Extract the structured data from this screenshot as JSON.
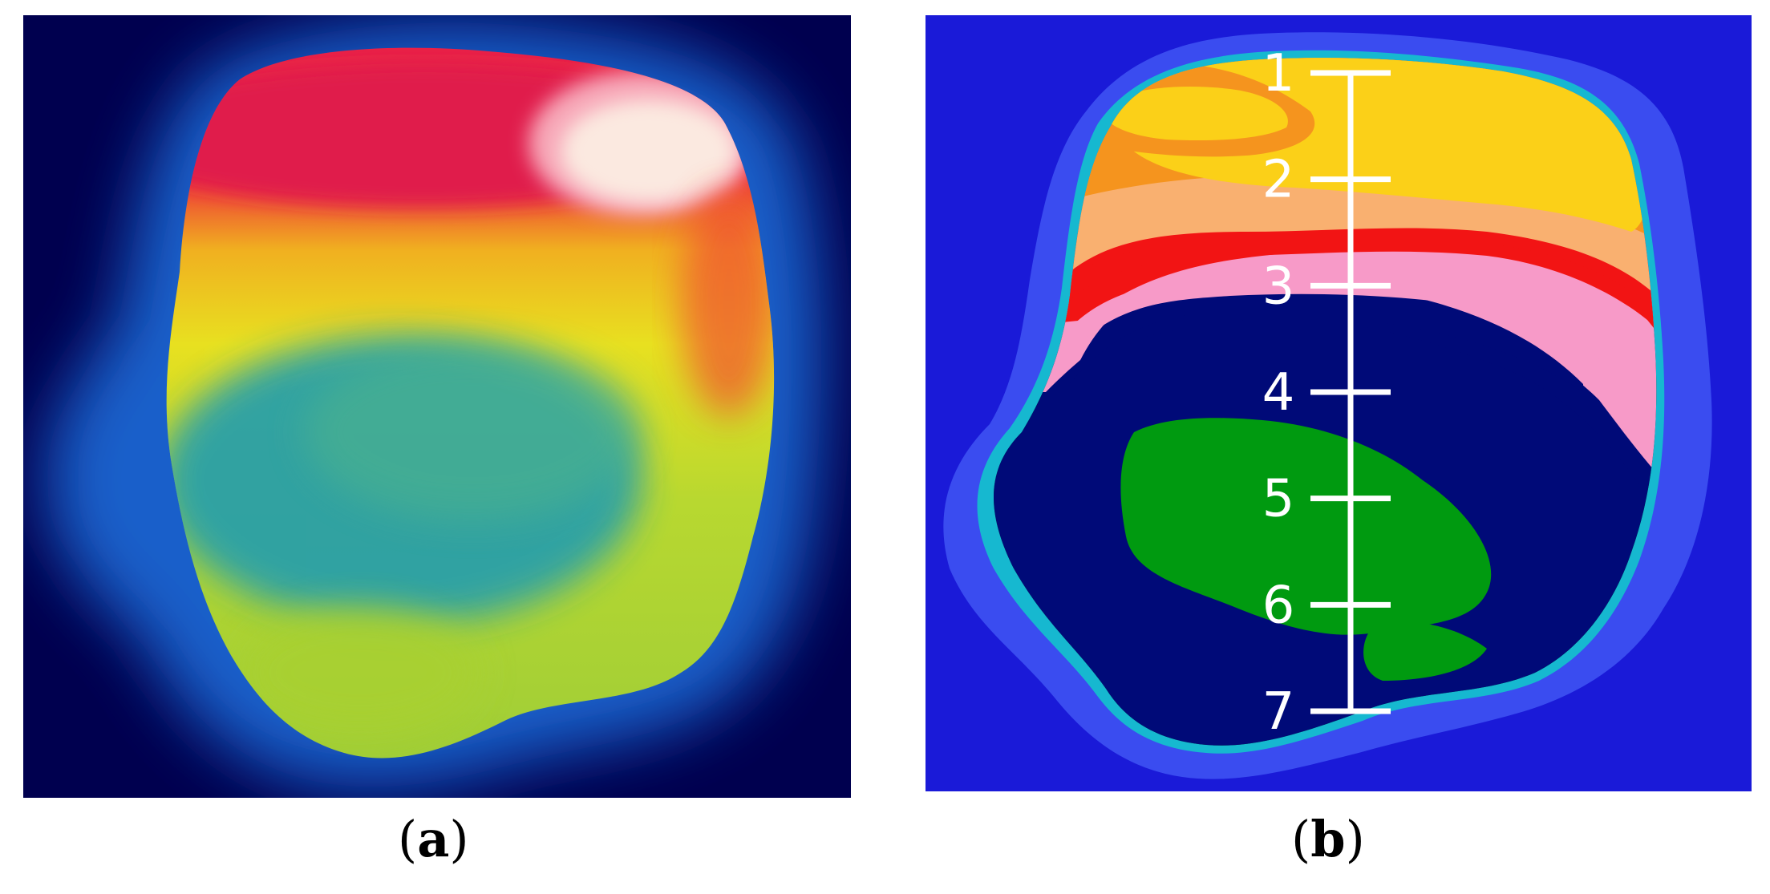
{
  "panels": [
    {
      "id": "a",
      "caption_open": "(",
      "caption_letter": "a",
      "caption_close": ")"
    },
    {
      "id": "b",
      "caption_open": "(",
      "caption_letter": "b",
      "caption_close": ")"
    }
  ],
  "scale_ticks": [
    "1",
    "2",
    "3",
    "4",
    "5",
    "6",
    "7"
  ],
  "colors": {
    "a_background": "#00004f",
    "a_halo": "#1a6ad8",
    "a_red": "#e8204a",
    "a_white": "#fbe9e0",
    "a_yellow": "#e8e020",
    "a_green": "#a8d830",
    "a_teal": "#2aa0a8",
    "b_background": "#1a1ad8",
    "b_blue_ring": "#3a4cf0",
    "b_cyan": "#16b8d0",
    "b_green": "#009a10",
    "b_navy": "#000a78",
    "b_pink": "#f79ac8",
    "b_red": "#f21414",
    "b_orange": "#f5941e",
    "b_light_orange": "#f9b070",
    "b_yellow": "#fbd018",
    "scale_white": "#ffffff"
  }
}
